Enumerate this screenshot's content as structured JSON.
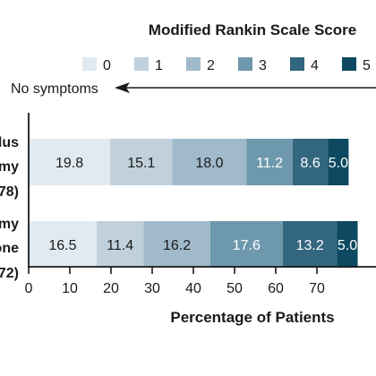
{
  "chart_data": {
    "type": "bar",
    "orientation": "horizontal",
    "stacked": true,
    "legend_title": "Modified Rankin Scale Score",
    "legend": [
      {
        "label": "0",
        "color": "#e1eaf0"
      },
      {
        "label": "1",
        "color": "#c0d1dc"
      },
      {
        "label": "2",
        "color": "#a0bacb"
      },
      {
        "label": "3",
        "color": "#6e98ad"
      },
      {
        "label": "4",
        "color": "#33667f"
      },
      {
        "label": "5",
        "color": "#0d4961"
      }
    ],
    "legend_placement": "top",
    "annotation": "No symptoms",
    "groups": [
      {
        "label_lines": [
          "lus",
          "my",
          "78)"
        ],
        "values": [
          19.8,
          15.1,
          18.0,
          11.2,
          8.6,
          5.0
        ]
      },
      {
        "label_lines": [
          "my",
          "one",
          "72)"
        ],
        "values": [
          16.5,
          11.4,
          16.2,
          17.6,
          13.2,
          5
        ]
      }
    ],
    "xlabel": "Percentage of Patients",
    "xticks": [
      "0",
      "10",
      "20",
      "30",
      "40",
      "50",
      "60",
      "70"
    ],
    "xlim": [
      0,
      83.5
    ],
    "grid": false
  }
}
